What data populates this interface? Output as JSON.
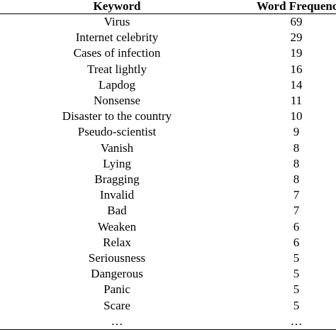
{
  "table": {
    "headers": [
      "Keyword",
      "Word Frequency"
    ],
    "rows": [
      {
        "keyword": "Virus",
        "frequency": "69"
      },
      {
        "keyword": "Internet celebrity",
        "frequency": "29"
      },
      {
        "keyword": "Cases of infection",
        "frequency": "19"
      },
      {
        "keyword": "Treat lightly",
        "frequency": "16"
      },
      {
        "keyword": "Lapdog",
        "frequency": "14"
      },
      {
        "keyword": "Nonsense",
        "frequency": "11"
      },
      {
        "keyword": "Disaster to the country",
        "frequency": "10"
      },
      {
        "keyword": "Pseudo-scientist",
        "frequency": "9"
      },
      {
        "keyword": "Vanish",
        "frequency": "8"
      },
      {
        "keyword": "Lying",
        "frequency": "8"
      },
      {
        "keyword": "Bragging",
        "frequency": "8"
      },
      {
        "keyword": "Invalid",
        "frequency": "7"
      },
      {
        "keyword": "Bad",
        "frequency": "7"
      },
      {
        "keyword": "Weaken",
        "frequency": "6"
      },
      {
        "keyword": "Relax",
        "frequency": "6"
      },
      {
        "keyword": "Seriousness",
        "frequency": "5"
      },
      {
        "keyword": "Dangerous",
        "frequency": "5"
      },
      {
        "keyword": "Panic",
        "frequency": "5"
      },
      {
        "keyword": "Scare",
        "frequency": "5"
      },
      {
        "keyword": "…",
        "frequency": "…"
      }
    ]
  }
}
